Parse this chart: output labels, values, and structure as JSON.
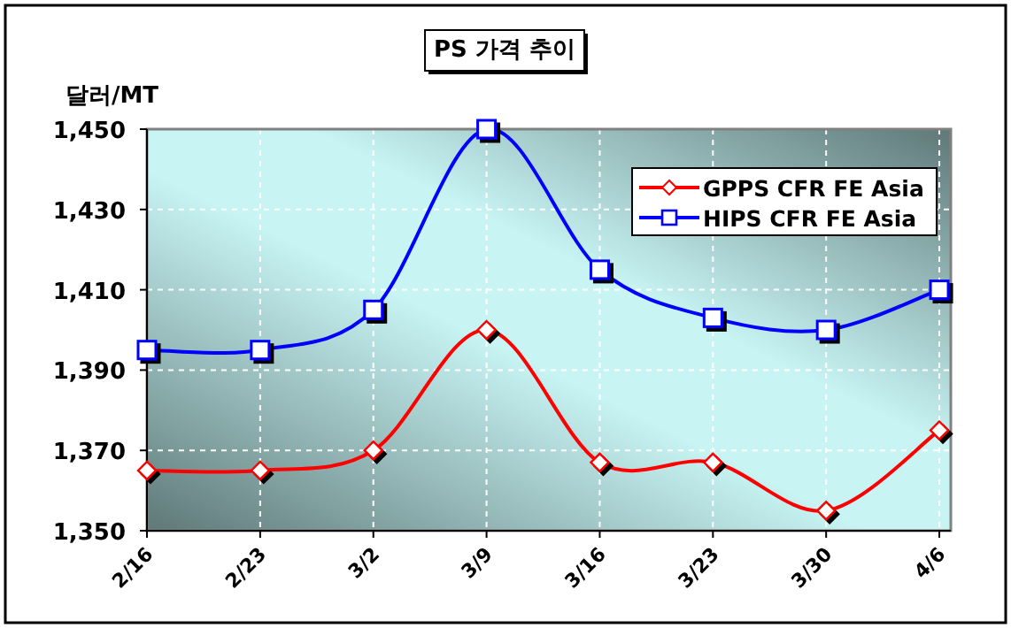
{
  "chart_data": {
    "type": "line",
    "title": "PS 가격 추이",
    "ylabel": "달러/MT",
    "categories": [
      "2/16",
      "2/23",
      "3/2",
      "3/9",
      "3/16",
      "3/23",
      "3/30",
      "4/6"
    ],
    "series": [
      {
        "name": "GPPS CFR FE Asia",
        "color": "#ff0000",
        "marker": "diamond",
        "values": [
          1365,
          1365,
          1370,
          1400,
          1367,
          1367,
          1355,
          1375
        ]
      },
      {
        "name": "HIPS CFR FE Asia",
        "color": "#0000ff",
        "marker": "square",
        "values": [
          1395,
          1395,
          1405,
          1450,
          1415,
          1403,
          1400,
          1410
        ]
      }
    ],
    "ylim": [
      1350,
      1450
    ],
    "yticks": [
      {
        "value": 1350,
        "label": "1,350"
      },
      {
        "value": 1370,
        "label": "1,370"
      },
      {
        "value": 1390,
        "label": "1,390"
      },
      {
        "value": 1410,
        "label": "1,410"
      },
      {
        "value": 1430,
        "label": "1,430"
      },
      {
        "value": 1450,
        "label": "1,450"
      }
    ],
    "grid": true,
    "legend": "top right"
  }
}
